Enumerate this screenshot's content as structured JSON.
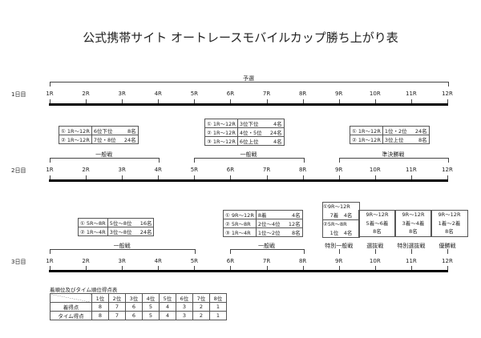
{
  "title": "公式携帯サイト オートレースモバイルカップ勝ち上がり表",
  "rounds": [
    "1R",
    "2R",
    "3R",
    "4R",
    "5R",
    "6R",
    "7R",
    "8R",
    "9R",
    "10R",
    "11R",
    "12R"
  ],
  "days": [
    {
      "label": "1日目",
      "brackets": [
        {
          "label": "予選",
          "from": 1,
          "to": 12
        }
      ]
    },
    {
      "label": "2日目",
      "brackets": [
        {
          "label": "一般戦",
          "from": 1,
          "to": 4
        },
        {
          "label": "一般戦",
          "from": 5,
          "to": 8
        },
        {
          "label": "準決勝戦",
          "from": 9,
          "to": 12
        }
      ]
    },
    {
      "label": "3日目",
      "brackets": [
        {
          "label": "一般戦",
          "from": 1,
          "to": 5
        },
        {
          "label": "一般戦",
          "from": 6,
          "to": 8
        },
        {
          "label": "特別一般戦",
          "from": 9,
          "to": 9
        },
        {
          "label": "選抜戦",
          "from": 10,
          "to": 10
        },
        {
          "label": "特別選抜戦",
          "from": 11,
          "to": 11
        },
        {
          "label": "優勝戦",
          "from": 12,
          "to": 12
        }
      ]
    }
  ],
  "qual_tables": [
    {
      "rows": [
        [
          "① 1R～12R",
          "6位下位",
          "8名"
        ],
        [
          "② 1R～12R",
          "7位・8位",
          "24名"
        ]
      ]
    },
    {
      "rows": [
        [
          "① 1R～12R",
          "3位下位",
          "4名"
        ],
        [
          "② 1R～12R",
          "4位・5位",
          "24名"
        ],
        [
          "③ 1R～12R",
          "6位上位",
          "4名"
        ]
      ]
    },
    {
      "rows": [
        [
          "① 1R～12R",
          "1位・2位",
          "24名"
        ],
        [
          "② 1R～12R",
          "3位上位",
          "8名"
        ]
      ]
    },
    {
      "rows": [
        [
          "① 5R～8R",
          "5位～8位",
          "16名"
        ],
        [
          "② 1R～4R",
          "3位～8位",
          "24名"
        ]
      ]
    },
    {
      "rows": [
        [
          "① 9R～12R",
          "8着",
          "4名"
        ],
        [
          "② 5R～8R",
          "2位～4位",
          "12名"
        ],
        [
          "③ 1R～4R",
          "1位～2位",
          "8名"
        ]
      ]
    }
  ],
  "final_boxes": [
    {
      "lines": [
        "①9R～12R",
        "7着　4名",
        "②5R～8R",
        "1位　4名"
      ]
    },
    {
      "lines": [
        "9R～12R",
        "5着～6着",
        "8名"
      ]
    },
    {
      "lines": [
        "9R～12R",
        "3着～4着",
        "8名"
      ]
    },
    {
      "lines": [
        "9R～12R",
        "1着～2着",
        "8名"
      ]
    }
  ],
  "points": {
    "title": "着順位及びタイム順位得点表",
    "headers": [
      "1位",
      "2位",
      "3位",
      "4位",
      "5位",
      "6位",
      "7位",
      "8位"
    ],
    "rows": [
      {
        "label": "着得点",
        "values": [
          "8",
          "7",
          "6",
          "5",
          "4",
          "3",
          "2",
          "1"
        ]
      },
      {
        "label": "タイム得点",
        "values": [
          "8",
          "7",
          "6",
          "5",
          "4",
          "3",
          "2",
          "1"
        ]
      }
    ]
  }
}
